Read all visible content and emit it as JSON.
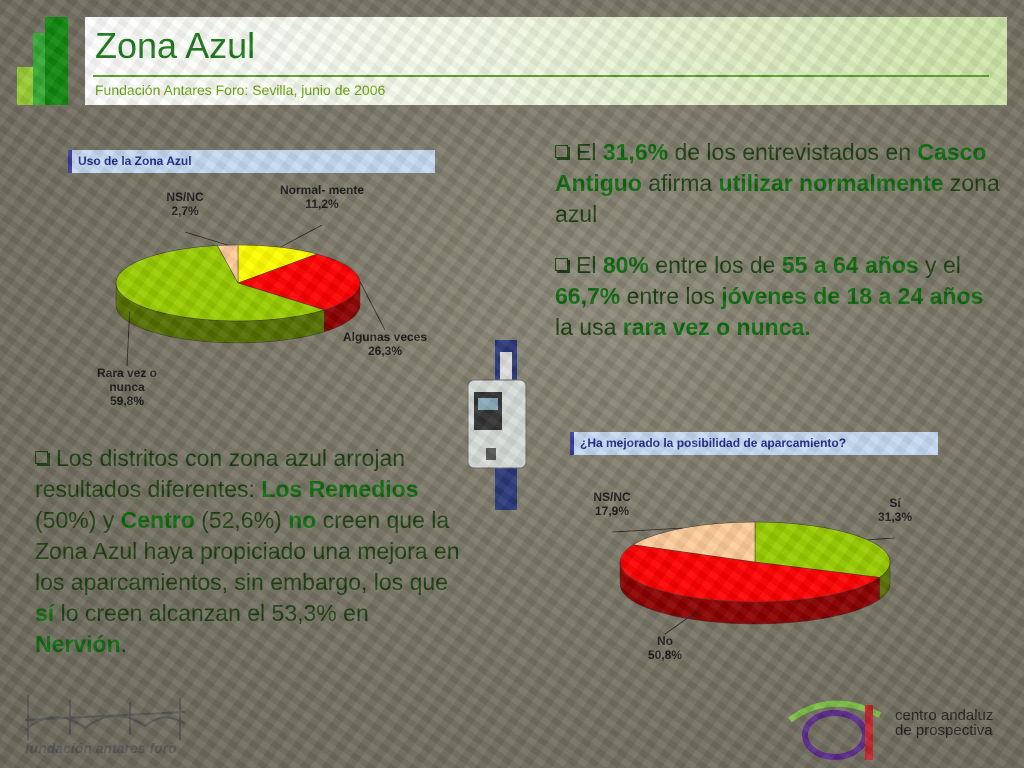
{
  "header": {
    "title": "Zona Azul",
    "subtitle": "Fundación Antares Foro: Sevilla, junio de 2006"
  },
  "chart_data": [
    {
      "type": "pie",
      "title": "Uso de la Zona Azul",
      "categories": [
        "Normal- mente",
        "Algunas veces",
        "Rara vez o nunca",
        "NS/NC"
      ],
      "values": [
        11.2,
        26.3,
        59.8,
        2.7
      ],
      "value_labels": [
        "11,2%",
        "26,3%",
        "59,8%",
        "2,7%"
      ],
      "colors": [
        "#ffff00",
        "#ff0000",
        "#99cc00",
        "#ffcc99"
      ]
    },
    {
      "type": "pie",
      "title": "¿Ha mejorado la posibilidad de aparcamiento?",
      "categories": [
        "Sí",
        "No",
        "NS/NC"
      ],
      "values": [
        31.3,
        50.8,
        17.9
      ],
      "value_labels": [
        "31,3%",
        "50,8%",
        "17,9%"
      ],
      "colors": [
        "#99cc00",
        "#ff0000",
        "#ffcc99"
      ]
    }
  ],
  "bullets": [
    {
      "parts": [
        {
          "text": "El "
        },
        {
          "text": "31,6%",
          "bold": true
        },
        {
          "text": " de los entrevistados en "
        },
        {
          "text": "Casco Antiguo",
          "bold": true
        },
        {
          "text": " afirma "
        },
        {
          "text": "utilizar normalmente",
          "bold": true
        },
        {
          "text": " zona azul"
        }
      ]
    },
    {
      "parts": [
        {
          "text": "El "
        },
        {
          "text": "80%",
          "bold": true
        },
        {
          "text": " entre los de "
        },
        {
          "text": "55 a 64 años",
          "bold": true
        },
        {
          "text": " y el "
        },
        {
          "text": "66,7%",
          "bold": true
        },
        {
          "text": " entre los "
        },
        {
          "text": "jóvenes de 18 a 24 años",
          "bold": true
        },
        {
          "text": " la usa "
        },
        {
          "text": "rara vez o nunca.",
          "bold": true
        }
      ]
    },
    {
      "parts": [
        {
          "text": "Los distritos con zona azul arrojan resultados diferentes: "
        },
        {
          "text": "Los Remedios",
          "bold": true
        },
        {
          "text": " (50%) y "
        },
        {
          "text": "Centro",
          "bold": true
        },
        {
          "text": " (52,6%) "
        },
        {
          "text": "no",
          "bold": true
        },
        {
          "text": " creen que la Zona Azul haya propiciado una mejora en los aparcamientos, sin embargo, los que "
        },
        {
          "text": "sí",
          "bold": true
        },
        {
          "text": " lo creen alcanzan el 53,3% en "
        },
        {
          "text": "Nervión",
          "bold": true
        },
        {
          "text": "."
        }
      ]
    }
  ],
  "logos": {
    "left": "fundación antares foro",
    "right": "centro andaluz de prospectiva"
  }
}
